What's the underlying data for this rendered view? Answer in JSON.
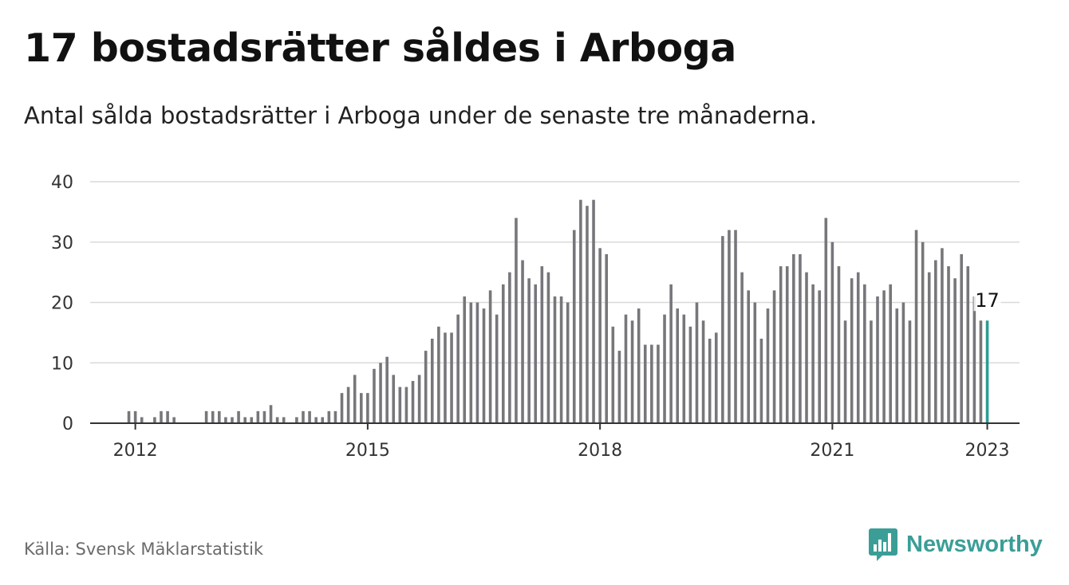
{
  "header": {
    "title": "17 bostadsrätter såldes i Arboga",
    "subtitle": "Antal sålda bostadsrätter i Arboga under de senaste tre månaderna."
  },
  "footer": {
    "source": "Källa: Svensk Mäklarstatistik",
    "brand": "Newsworthy",
    "brand_icon": "bar-chart-speech-bubble-icon"
  },
  "colors": {
    "bar": "#77767b",
    "highlight": "#2a9d96",
    "grid": "#d9d9d9",
    "axis": "#333333",
    "brand": "#3a9e97"
  },
  "chart_data": {
    "type": "bar",
    "title": "17 bostadsrätter såldes i Arboga",
    "xlabel": "",
    "ylabel": "",
    "x_start": "2011-06",
    "x_end": "2023-06",
    "ylim": [
      0,
      40
    ],
    "yticks": [
      0,
      10,
      20,
      30,
      40
    ],
    "xticks": [
      {
        "date": "2012-01",
        "label": "2012"
      },
      {
        "date": "2015-01",
        "label": "2015"
      },
      {
        "date": "2018-01",
        "label": "2018"
      },
      {
        "date": "2021-01",
        "label": "2021"
      },
      {
        "date": "2023-01",
        "label": "2023"
      }
    ],
    "grid": true,
    "legend": "none",
    "series": [
      {
        "x": [
          "2011-12",
          "2012-01",
          "2012-02",
          "2012-03",
          "2012-04",
          "2012-05",
          "2012-06",
          "2012-07",
          "2012-08",
          "2012-09",
          "2012-10",
          "2012-11",
          "2012-12",
          "2013-01",
          "2013-02",
          "2013-03",
          "2013-04",
          "2013-05",
          "2013-06",
          "2013-07",
          "2013-08",
          "2013-09",
          "2013-10",
          "2013-11",
          "2013-12",
          "2014-01",
          "2014-02",
          "2014-03",
          "2014-04",
          "2014-05",
          "2014-06",
          "2014-07",
          "2014-08",
          "2014-09",
          "2014-10",
          "2014-11",
          "2014-12",
          "2015-01",
          "2015-02",
          "2015-03",
          "2015-04",
          "2015-05",
          "2015-06",
          "2015-07",
          "2015-08",
          "2015-09",
          "2015-10",
          "2015-11",
          "2015-12",
          "2016-01",
          "2016-02",
          "2016-03",
          "2016-04",
          "2016-05",
          "2016-06",
          "2016-07",
          "2016-08",
          "2016-09",
          "2016-10",
          "2016-11",
          "2016-12",
          "2017-01",
          "2017-02",
          "2017-03",
          "2017-04",
          "2017-05",
          "2017-06",
          "2017-07",
          "2017-08",
          "2017-09",
          "2017-10",
          "2017-11",
          "2017-12",
          "2018-01",
          "2018-02",
          "2018-03",
          "2018-04",
          "2018-05",
          "2018-06",
          "2018-07",
          "2018-08",
          "2018-09",
          "2018-10",
          "2018-11",
          "2018-12",
          "2019-01",
          "2019-02",
          "2019-03",
          "2019-04",
          "2019-05",
          "2019-06",
          "2019-07",
          "2019-08",
          "2019-09",
          "2019-10",
          "2019-11",
          "2019-12",
          "2020-01",
          "2020-02",
          "2020-03",
          "2020-04",
          "2020-05",
          "2020-06",
          "2020-07",
          "2020-08",
          "2020-09",
          "2020-10",
          "2020-11",
          "2020-12",
          "2021-01",
          "2021-02",
          "2021-03",
          "2021-04",
          "2021-05",
          "2021-06",
          "2021-07",
          "2021-08",
          "2021-09",
          "2021-10",
          "2021-11",
          "2021-12",
          "2022-01",
          "2022-02",
          "2022-03",
          "2022-04",
          "2022-05",
          "2022-06",
          "2022-07",
          "2022-08",
          "2022-09",
          "2022-10",
          "2022-11",
          "2022-12",
          "2023-01"
        ],
        "values": [
          2,
          2,
          1,
          0,
          1,
          2,
          2,
          1,
          0,
          0,
          0,
          0,
          2,
          2,
          2,
          1,
          1,
          2,
          1,
          1,
          2,
          2,
          3,
          1,
          1,
          0,
          1,
          2,
          2,
          1,
          1,
          2,
          2,
          5,
          6,
          8,
          5,
          5,
          9,
          10,
          11,
          8,
          6,
          6,
          7,
          8,
          12,
          14,
          16,
          15,
          15,
          18,
          21,
          20,
          20,
          19,
          22,
          18,
          23,
          25,
          34,
          27,
          24,
          23,
          26,
          25,
          21,
          21,
          20,
          32,
          37,
          36,
          37,
          29,
          28,
          16,
          12,
          18,
          17,
          19,
          13,
          13,
          13,
          18,
          23,
          19,
          18,
          16,
          20,
          17,
          14,
          15,
          31,
          32,
          32,
          25,
          22,
          20,
          14,
          19,
          22,
          26,
          26,
          28,
          28,
          25,
          23,
          22,
          34,
          30,
          26,
          17,
          24,
          25,
          23,
          17,
          21,
          22,
          23,
          19,
          20,
          17,
          32,
          30,
          25,
          27,
          29,
          26,
          24,
          28,
          26,
          21,
          17,
          17
        ],
        "highlight_index": 133,
        "highlight_label": "17"
      }
    ]
  }
}
